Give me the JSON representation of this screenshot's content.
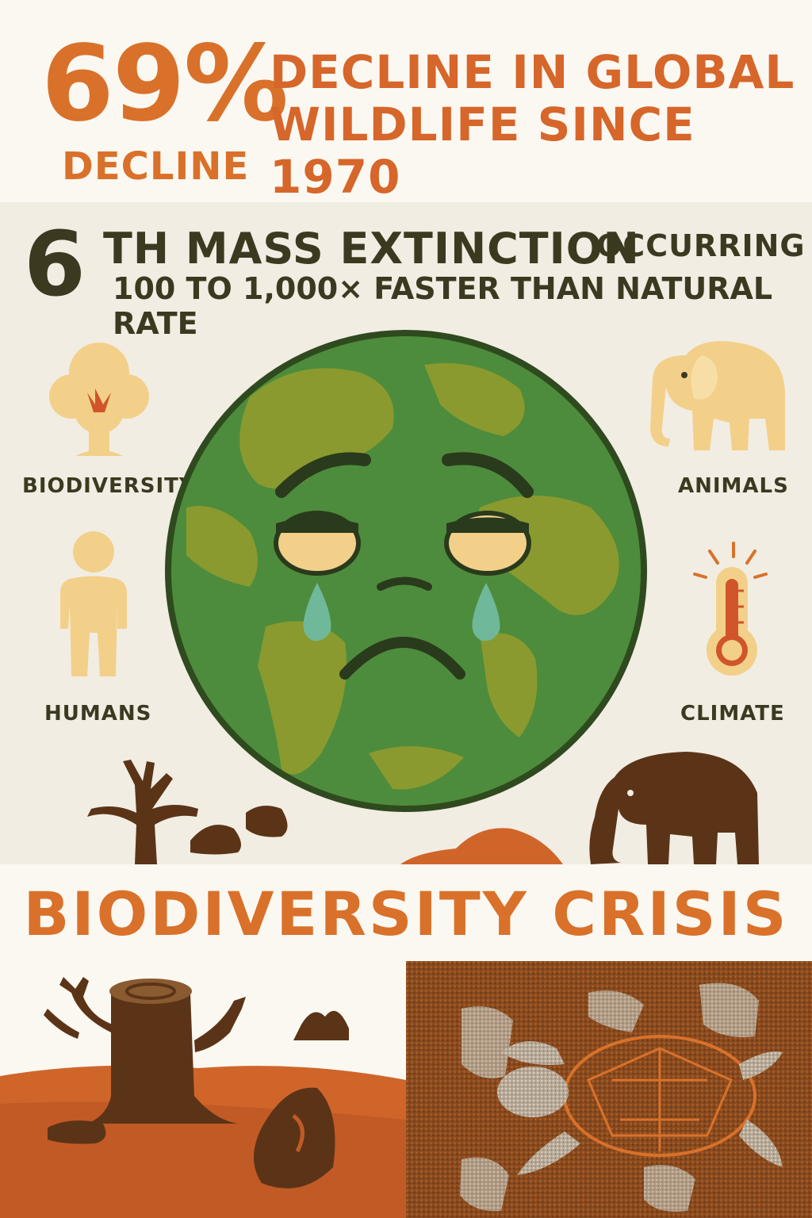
{
  "stats": {
    "percent": "69%",
    "decline_word": "DECLINE",
    "headline_line1": "DECLINE IN GLOBAL",
    "headline_line2": "WILDLIFE SINCE 1970"
  },
  "extinction": {
    "ordinal": "6",
    "title": "TH MASS EXTINCTION",
    "occurring": "OCCURRING",
    "rate": "100 TO 1,000× FASTER THAN NATURAL RATE"
  },
  "icons": {
    "biodiversity": "BIODIVERSITY",
    "animals": "ANIMALS",
    "humans": "HUMANS",
    "climate": "CLIMATE"
  },
  "banner": {
    "title": "BIODIVERSITY CRISIS"
  },
  "colors": {
    "orange": "#d9712a",
    "dark": "#3b3a20",
    "earth_green": "#4f8a3a",
    "land_green": "#8a9a2e",
    "tan": "#f3d08a",
    "brown": "#5b3418"
  }
}
